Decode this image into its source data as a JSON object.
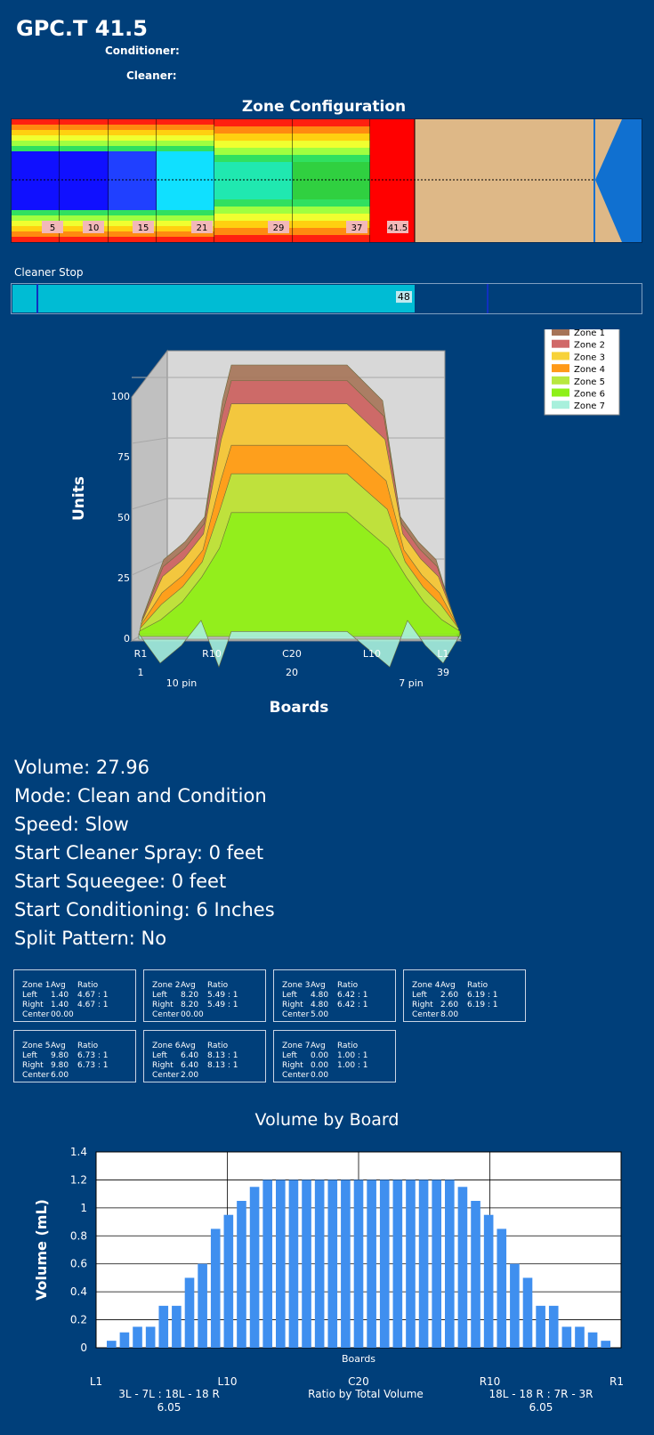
{
  "header": {
    "title": "GPC.T 41.5",
    "conditioner_label": "Conditioner:",
    "cleaner_label": "Cleaner:"
  },
  "zone_config": {
    "heading": "Zone Configuration",
    "markers": [
      "5",
      "10",
      "15",
      "21",
      "29",
      "37",
      "41.5"
    ]
  },
  "cleaner_stop": {
    "label": "Cleaner Stop",
    "value": "48",
    "fill_fraction": 0.64
  },
  "info": {
    "volume": "Volume: 27.96",
    "mode": "Mode: Clean and Condition",
    "speed": "Speed: Slow",
    "start_cleaner_spray": "Start Cleaner Spray: 0 feet",
    "start_squeegee": "Start Squeegee: 0 feet",
    "start_conditioning": "Start Conditioning: 6 Inches",
    "split_pattern": "Split Pattern: No"
  },
  "zone_tables": [
    {
      "h": [
        "Zone 1",
        "Avg",
        "Ratio"
      ],
      "left": [
        "Left",
        "1.40",
        "4.67 : 1"
      ],
      "right": [
        "Right",
        "1.40",
        "4.67 : 1"
      ],
      "center": [
        "Center",
        "00.00",
        ""
      ]
    },
    {
      "h": [
        "Zone 2",
        "Avg",
        "Ratio"
      ],
      "left": [
        "Left",
        "8.20",
        "5.49 : 1"
      ],
      "right": [
        "Right",
        "8.20",
        "5.49 : 1"
      ],
      "center": [
        "Center",
        "00.00",
        ""
      ]
    },
    {
      "h": [
        "Zone 3",
        "Avg",
        "Ratio"
      ],
      "left": [
        "Left",
        "4.80",
        "6.42 : 1"
      ],
      "right": [
        "Right",
        "4.80",
        "6.42 : 1"
      ],
      "center": [
        "Center",
        "5.00",
        ""
      ]
    },
    {
      "h": [
        "Zone 4",
        "Avg",
        "Ratio"
      ],
      "left": [
        "Left",
        "2.60",
        "6.19 : 1"
      ],
      "right": [
        "Right",
        "2.60",
        "6.19 : 1"
      ],
      "center": [
        "Center",
        "8.00",
        ""
      ]
    },
    {
      "h": [
        "Zone 5",
        "Avg",
        "Ratio"
      ],
      "left": [
        "Left",
        "9.80",
        "6.73 : 1"
      ],
      "right": [
        "Right",
        "9.80",
        "6.73 : 1"
      ],
      "center": [
        "Center",
        "6.00",
        ""
      ]
    },
    {
      "h": [
        "Zone 6",
        "Avg",
        "Ratio"
      ],
      "left": [
        "Left",
        "6.40",
        "8.13 : 1"
      ],
      "right": [
        "Right",
        "6.40",
        "8.13 : 1"
      ],
      "center": [
        "Center",
        "2.00",
        ""
      ]
    },
    {
      "h": [
        "Zone 7",
        "Avg",
        "Ratio"
      ],
      "left": [
        "Left",
        "0.00",
        "1.00 : 1"
      ],
      "right": [
        "Right",
        "0.00",
        "1.00 : 1"
      ],
      "center": [
        "Center",
        "0.00",
        ""
      ]
    }
  ],
  "chart_data": [
    {
      "type": "area",
      "title": "",
      "ylabel": "Units",
      "xlabel": "Boards",
      "ylim": [
        0,
        100
      ],
      "yticks": [
        "0",
        "25",
        "50",
        "75",
        "100"
      ],
      "xticks": [
        "R1",
        "R10",
        "C20",
        "L10",
        "L1"
      ],
      "xticks2": [
        "1",
        "20",
        "39"
      ],
      "pin_labels": [
        "10 pin",
        "7 pin"
      ],
      "legend_position": "top-right",
      "series": [
        {
          "name": "Zone 1",
          "color": "#a67458",
          "peak": 100
        },
        {
          "name": "Zone 2",
          "color": "#d06868",
          "peak": 95
        },
        {
          "name": "Zone 3",
          "color": "#f7d23a",
          "peak": 87
        },
        {
          "name": "Zone 4",
          "color": "#ff9a18",
          "peak": 72
        },
        {
          "name": "Zone 5",
          "color": "#b8e840",
          "peak": 62
        },
        {
          "name": "Zone 6",
          "color": "#8ef018",
          "peak": 48
        },
        {
          "name": "Zone 7",
          "color": "#a8f0dc",
          "peak": 3
        }
      ]
    },
    {
      "type": "bar",
      "title": "Volume by Board",
      "xlabel": "Boards",
      "ylabel": "Volume (mL)",
      "ylim": [
        0,
        1.4
      ],
      "yticks": [
        "0",
        "0.2",
        "0.4",
        "0.6",
        "0.8",
        "1",
        "1.2",
        "1.4"
      ],
      "xticks": [
        "L1",
        "L10",
        "C20",
        "R10",
        "R1"
      ],
      "categories": [
        "1",
        "2",
        "3",
        "4",
        "5",
        "6",
        "7",
        "8",
        "9",
        "10",
        "11",
        "12",
        "13",
        "14",
        "15",
        "16",
        "17",
        "18",
        "19",
        "20",
        "21",
        "22",
        "23",
        "24",
        "25",
        "26",
        "27",
        "28",
        "29",
        "30",
        "31",
        "32",
        "33",
        "34",
        "35",
        "36",
        "37",
        "38",
        "39"
      ],
      "values": [
        0.05,
        0.11,
        0.15,
        0.15,
        0.3,
        0.3,
        0.5,
        0.6,
        0.85,
        0.95,
        1.05,
        1.15,
        1.2,
        1.2,
        1.2,
        1.2,
        1.2,
        1.2,
        1.2,
        1.2,
        1.2,
        1.2,
        1.2,
        1.2,
        1.2,
        1.2,
        1.2,
        1.15,
        1.05,
        0.95,
        0.85,
        0.6,
        0.5,
        0.3,
        0.3,
        0.15,
        0.15,
        0.11,
        0.05
      ],
      "footer": {
        "left_ratio": "3L - 7L : 18L - 18 R",
        "left_value": "6.05",
        "center_label": "Ratio by Total Volume",
        "right_ratio": "18L - 18 R : 7R - 3R",
        "right_value": "6.05"
      }
    }
  ]
}
